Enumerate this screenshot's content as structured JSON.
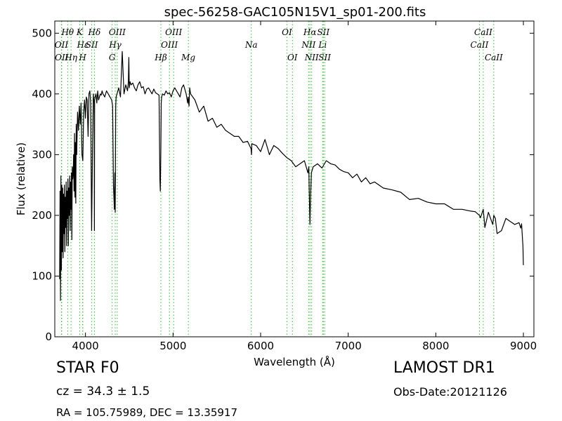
{
  "chart_data": {
    "type": "line",
    "title": "spec-56258-GAC105N15V1_sp01-200.fits",
    "xlabel": "Wavelength (Å)",
    "ylabel": "Flux (relative)",
    "xlim": [
      3650,
      9120
    ],
    "ylim": [
      0,
      520
    ],
    "xticks": [
      4000,
      5000,
      6000,
      7000,
      8000,
      9000
    ],
    "yticks": [
      0,
      100,
      200,
      300,
      400,
      500
    ],
    "grid": false,
    "line_color": "#000000",
    "marker_color": "#33bb33",
    "series": [
      {
        "x": [
          3705,
          3710,
          3715,
          3720,
          3725,
          3730,
          3735,
          3740,
          3745,
          3750,
          3755,
          3760,
          3765,
          3770,
          3775,
          3780,
          3785,
          3790,
          3795,
          3800,
          3805,
          3810,
          3815,
          3820,
          3825,
          3830,
          3835,
          3840,
          3845,
          3850,
          3855,
          3860,
          3865,
          3870,
          3875,
          3880,
          3885,
          3890,
          3895,
          3900,
          3910,
          3920,
          3930,
          3940,
          3950,
          3960,
          3970,
          3980,
          3990,
          4000,
          4010,
          4020,
          4030,
          4040,
          4050,
          4060,
          4070,
          4080,
          4090,
          4095,
          4100,
          4102,
          4105,
          4110,
          4120,
          4130,
          4140,
          4150,
          4160,
          4170,
          4180,
          4190,
          4200,
          4220,
          4240,
          4260,
          4280,
          4300,
          4310,
          4320,
          4330,
          4335,
          4340,
          4345,
          4350,
          4360,
          4370,
          4380,
          4400,
          4420,
          4440,
          4460,
          4480,
          4490,
          4495,
          4500,
          4510,
          4520,
          4540,
          4560,
          4580,
          4600,
          4620,
          4640,
          4660,
          4680,
          4700,
          4720,
          4740,
          4760,
          4780,
          4800,
          4820,
          4840,
          4850,
          4855,
          4861,
          4865,
          4870,
          4880,
          4900,
          4920,
          4940,
          4960,
          4980,
          5000,
          5020,
          5040,
          5060,
          5080,
          5100,
          5120,
          5150,
          5167,
          5172,
          5183,
          5190,
          5200,
          5250,
          5300,
          5350,
          5400,
          5450,
          5500,
          5550,
          5600,
          5650,
          5700,
          5750,
          5800,
          5850,
          5890,
          5896,
          5900,
          5950,
          6000,
          6050,
          6100,
          6150,
          6200,
          6250,
          6300,
          6350,
          6400,
          6450,
          6500,
          6540,
          6550,
          6555,
          6563,
          6570,
          6580,
          6600,
          6650,
          6700,
          6750,
          6800,
          6850,
          6900,
          6950,
          7000,
          7050,
          7100,
          7150,
          7200,
          7250,
          7300,
          7400,
          7500,
          7600,
          7700,
          7800,
          7900,
          8000,
          8100,
          8200,
          8300,
          8400,
          8450,
          8498,
          8510,
          8542,
          8560,
          8600,
          8650,
          8662,
          8680,
          8700,
          8750,
          8800,
          8850,
          8900,
          8950,
          8970,
          8980,
          8990,
          8995,
          9000
        ],
        "y": [
          95,
          240,
          60,
          265,
          110,
          250,
          140,
          245,
          130,
          235,
          170,
          250,
          140,
          230,
          180,
          255,
          150,
          240,
          195,
          260,
          150,
          245,
          200,
          265,
          175,
          255,
          210,
          270,
          160,
          280,
          260,
          270,
          300,
          240,
          335,
          230,
          320,
          220,
          350,
          300,
          370,
          340,
          380,
          350,
          385,
          300,
          290,
          370,
          390,
          360,
          395,
          390,
          330,
          400,
          405,
          385,
          175,
          300,
          400,
          390,
          385,
          175,
          390,
          395,
          400,
          385,
          405,
          390,
          395,
          400,
          398,
          405,
          400,
          395,
          405,
          400,
          395,
          390,
          380,
          250,
          210,
          270,
          205,
          380,
          395,
          400,
          405,
          410,
          395,
          470,
          400,
          415,
          405,
          420,
          460,
          410,
          420,
          415,
          418,
          410,
          405,
          415,
          420,
          410,
          412,
          400,
          408,
          410,
          405,
          400,
          408,
          402,
          400,
          398,
          260,
          240,
          310,
          385,
          395,
          400,
          398,
          405,
          400,
          402,
          395,
          405,
          410,
          405,
          400,
          395,
          410,
          415,
          400,
          385,
          395,
          380,
          410,
          400,
          390,
          370,
          380,
          355,
          360,
          345,
          350,
          340,
          335,
          330,
          330,
          320,
          322,
          310,
          300,
          318,
          315,
          305,
          325,
          300,
          315,
          310,
          302,
          295,
          290,
          280,
          285,
          290,
          270,
          280,
          240,
          185,
          230,
          270,
          280,
          285,
          278,
          290,
          285,
          283,
          276,
          272,
          270,
          262,
          268,
          255,
          262,
          252,
          255,
          245,
          242,
          238,
          226,
          228,
          222,
          219,
          219,
          210,
          210,
          207,
          206,
          200,
          196,
          210,
          180,
          205,
          185,
          200,
          195,
          170,
          175,
          195,
          190,
          185,
          188,
          179,
          186,
          160,
          150,
          118
        ]
      }
    ],
    "lines": [
      {
        "label": "Hθ",
        "wl": 3797,
        "row": 1
      },
      {
        "label": "K",
        "wl": 3934,
        "row": 1
      },
      {
        "label": "Hδ",
        "wl": 4102,
        "row": 1
      },
      {
        "label": "OIII",
        "wl": 4363,
        "row": 1
      },
      {
        "label": "OIII",
        "wl": 5007,
        "row": 1
      },
      {
        "label": "OI",
        "wl": 6300,
        "row": 1
      },
      {
        "label": "Hα",
        "wl": 6563,
        "row": 1
      },
      {
        "label": "SII",
        "wl": 6716,
        "row": 1
      },
      {
        "label": "CaII",
        "wl": 8542,
        "row": 1
      },
      {
        "label": "OII",
        "wl": 3726,
        "row": 2
      },
      {
        "label": "Hε",
        "wl": 3970,
        "row": 2
      },
      {
        "label": "SII",
        "wl": 4072,
        "row": 2
      },
      {
        "label": "Hγ",
        "wl": 4340,
        "row": 2
      },
      {
        "label": "OIII",
        "wl": 4959,
        "row": 2
      },
      {
        "label": "Na",
        "wl": 5893,
        "row": 2
      },
      {
        "label": "NII",
        "wl": 6548,
        "row": 2
      },
      {
        "label": "Li",
        "wl": 6708,
        "row": 2
      },
      {
        "label": "CaII",
        "wl": 8498,
        "row": 2
      },
      {
        "label": "OII",
        "wl": 3729,
        "row": 3
      },
      {
        "label": "Hη",
        "wl": 3835,
        "row": 3
      },
      {
        "label": "H",
        "wl": 3968,
        "row": 3
      },
      {
        "label": "G",
        "wl": 4305,
        "row": 3
      },
      {
        "label": "Hβ",
        "wl": 4861,
        "row": 3
      },
      {
        "label": "Mg",
        "wl": 5175,
        "row": 3
      },
      {
        "label": "OI",
        "wl": 6363,
        "row": 3
      },
      {
        "label": "NII",
        "wl": 6583,
        "row": 3
      },
      {
        "label": "SII",
        "wl": 6731,
        "row": 3
      },
      {
        "label": "CaII",
        "wl": 8662,
        "row": 3
      }
    ]
  },
  "info": {
    "object_type": "STAR   F0",
    "survey": "LAMOST DR1",
    "cz": "cz = 34.3 ± 1.5",
    "obs_date": "Obs-Date:20121126",
    "radec": "RA = 105.75989, DEC = 13.35917"
  }
}
